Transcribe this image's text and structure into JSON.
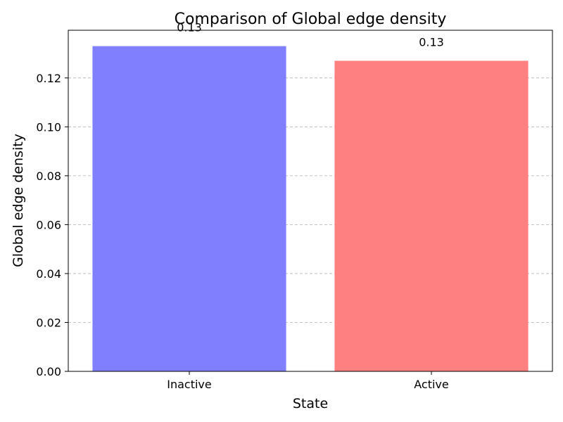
{
  "chart_data": {
    "type": "bar",
    "title": "Comparison of Global edge density",
    "xlabel": "State",
    "ylabel": "Global edge density",
    "categories": [
      "Inactive",
      "Active"
    ],
    "values": [
      0.133,
      0.127
    ],
    "data_labels": [
      "0.13",
      "0.13"
    ],
    "colors": [
      "#8080ff",
      "#ff8080"
    ],
    "ylim": [
      0,
      0.1395
    ],
    "yticks": [
      0.0,
      0.02,
      0.04,
      0.06,
      0.08,
      0.1,
      0.12
    ],
    "ytick_labels": [
      "0.00",
      "0.02",
      "0.04",
      "0.06",
      "0.08",
      "0.10",
      "0.12"
    ],
    "grid": "y-dashed",
    "legend": "none"
  }
}
